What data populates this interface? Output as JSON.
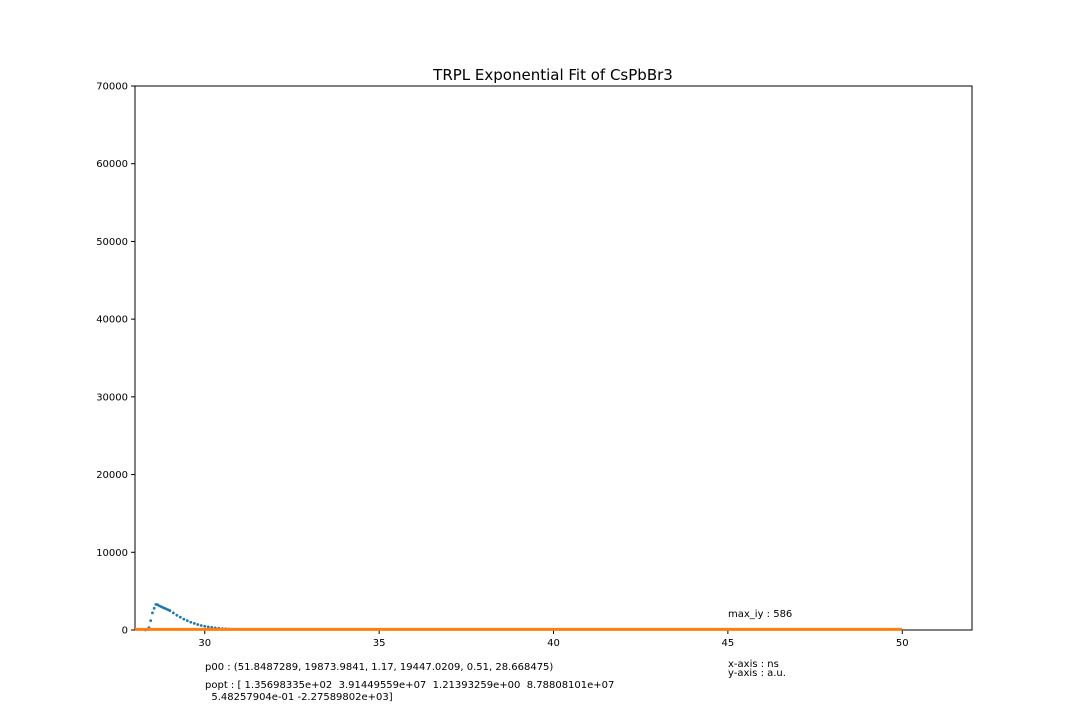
{
  "chart_data": {
    "type": "scatter",
    "title": "TRPL Exponential Fit of CsPbBr3",
    "xlabel": "",
    "ylabel": "",
    "xlim": [
      28.0,
      52.0
    ],
    "ylim": [
      0,
      70000
    ],
    "grid": false,
    "x_ticks": [
      30,
      35,
      40,
      45,
      50
    ],
    "y_ticks": [
      0,
      10000,
      20000,
      30000,
      40000,
      50000,
      60000,
      70000
    ],
    "x_tick_labels": [
      "30",
      "35",
      "40",
      "45",
      "50"
    ],
    "y_tick_labels": [
      "0",
      "10000",
      "20000",
      "30000",
      "40000",
      "50000",
      "60000",
      "70000"
    ],
    "series": [
      {
        "kind": "scatter",
        "color": "#1f77b4",
        "x": [
          28.3,
          28.4,
          28.45,
          28.5,
          28.55,
          28.6,
          28.65,
          28.7,
          28.75,
          28.8,
          28.85,
          28.9,
          28.95,
          29.0,
          29.1,
          29.2,
          29.3,
          29.4,
          29.5,
          29.6,
          29.7,
          29.8,
          29.9,
          30.0,
          30.1,
          30.2,
          30.3,
          30.4,
          30.5,
          30.6,
          30.7,
          30.8
        ],
        "y": [
          0,
          300,
          1200,
          2200,
          2800,
          3300,
          3250,
          3100,
          3000,
          2900,
          2800,
          2700,
          2600,
          2500,
          2200,
          1900,
          1650,
          1400,
          1200,
          1000,
          850,
          700,
          580,
          480,
          400,
          330,
          270,
          220,
          180,
          150,
          120,
          100
        ]
      },
      {
        "kind": "line",
        "color": "#ff7f0e",
        "x": [
          28.0,
          50.0
        ],
        "y": [
          80,
          80
        ]
      }
    ],
    "annotations": {
      "max_iy": "max_iy : 586",
      "x_axis": "x-axis : ns",
      "y_axis": "y-axis : a.u.",
      "p00": "p00 : (51.8487289, 19873.9841, 1.17, 19447.0209, 0.51, 28.668475)",
      "popt_line1": "popt : [ 1.35698335e+02  3.91449559e+07  1.21393259e+00  8.78808101e+07",
      "popt_line2": "  5.48257904e-01 -2.27589802e+03]"
    }
  }
}
